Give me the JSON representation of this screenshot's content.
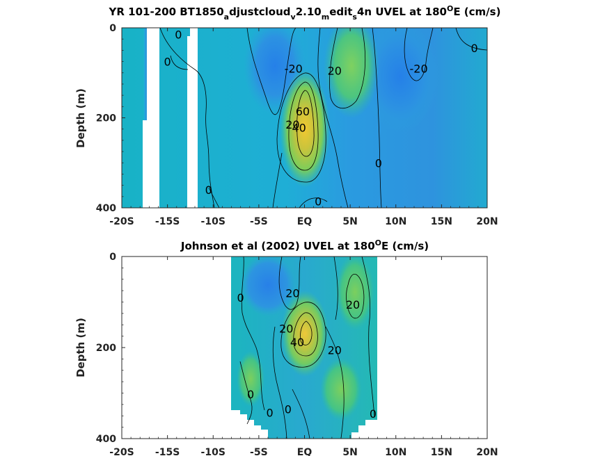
{
  "chart_data": [
    {
      "type": "heatmap",
      "title_parts": {
        "main": "YR 101-200 BT1850",
        "sub1": "a",
        "mid1": "djustcloud",
        "sub2": "v",
        "mid2": "2.10",
        "sub3": "m",
        "mid3": "edit",
        "sub4": "s",
        "tail": "4n UVEL at 180",
        "sup": "O",
        "end": "E (cm/s)"
      },
      "xlabel": "",
      "ylabel": "Depth (m)",
      "xlim": [
        -20,
        20
      ],
      "ylim": [
        0,
        400
      ],
      "y_reversed": true,
      "x_ticks": [
        -20,
        -15,
        -10,
        -5,
        0,
        5,
        10,
        15,
        20
      ],
      "x_tick_labels": [
        "-20S",
        "-15S",
        "-10S",
        "-5S",
        "EQ",
        "5N",
        "10N",
        "15N",
        "20N"
      ],
      "y_ticks": [
        0,
        200,
        400
      ],
      "y_tick_labels": [
        "0",
        "200",
        "400"
      ],
      "contour_levels": [
        -20,
        0,
        20,
        40,
        60
      ],
      "contour_labels": [
        {
          "text": "0",
          "x": -13.8,
          "y": 15
        },
        {
          "text": "0",
          "x": -15.0,
          "y": 75
        },
        {
          "text": "0",
          "x": -10.5,
          "y": 360
        },
        {
          "text": "-20",
          "x": -1.2,
          "y": 90
        },
        {
          "text": "20",
          "x": 3.3,
          "y": 95
        },
        {
          "text": "-20",
          "x": 12.5,
          "y": 90
        },
        {
          "text": "0",
          "x": 18.6,
          "y": 45
        },
        {
          "text": "60",
          "x": -0.2,
          "y": 185
        },
        {
          "text": "20",
          "x": -1.3,
          "y": 215
        },
        {
          "text": "40",
          "x": -0.6,
          "y": 222
        },
        {
          "text": "0",
          "x": 8.1,
          "y": 300
        },
        {
          "text": "0",
          "x": 1.5,
          "y": 385
        }
      ],
      "masked_x_ranges": [
        [
          -17.5,
          -15.7
        ],
        [
          -12.5,
          -11.6
        ]
      ]
    },
    {
      "type": "heatmap",
      "title_parts": {
        "main": "Johnson et al (2002) UVEL at 180",
        "sup": "O",
        "end": "E (cm/s)"
      },
      "xlabel": "",
      "ylabel": "Depth (m)",
      "xlim": [
        -20,
        20
      ],
      "ylim": [
        0,
        400
      ],
      "y_reversed": true,
      "x_ticks": [
        -20,
        -15,
        -10,
        -5,
        0,
        5,
        10,
        15,
        20
      ],
      "x_tick_labels": [
        "-20S",
        "-15S",
        "-10S",
        "-5S",
        "EQ",
        "5N",
        "10N",
        "15N",
        "20N"
      ],
      "y_ticks": [
        0,
        200,
        400
      ],
      "y_tick_labels": [
        "0",
        "200",
        "400"
      ],
      "data_x_range": [
        -8,
        8
      ],
      "contour_levels": [
        -20,
        0,
        20,
        40
      ],
      "contour_labels": [
        {
          "text": "0",
          "x": -7.0,
          "y": 90
        },
        {
          "text": "20",
          "x": -1.3,
          "y": 80
        },
        {
          "text": "20",
          "x": 5.3,
          "y": 105
        },
        {
          "text": "20",
          "x": -2.0,
          "y": 158
        },
        {
          "text": "40",
          "x": -0.8,
          "y": 188
        },
        {
          "text": "20",
          "x": 3.3,
          "y": 205
        },
        {
          "text": "0",
          "x": -5.9,
          "y": 302
        },
        {
          "text": "0",
          "x": -3.8,
          "y": 343
        },
        {
          "text": "0",
          "x": -1.8,
          "y": 335
        },
        {
          "text": "0",
          "x": 7.5,
          "y": 345
        }
      ]
    }
  ]
}
